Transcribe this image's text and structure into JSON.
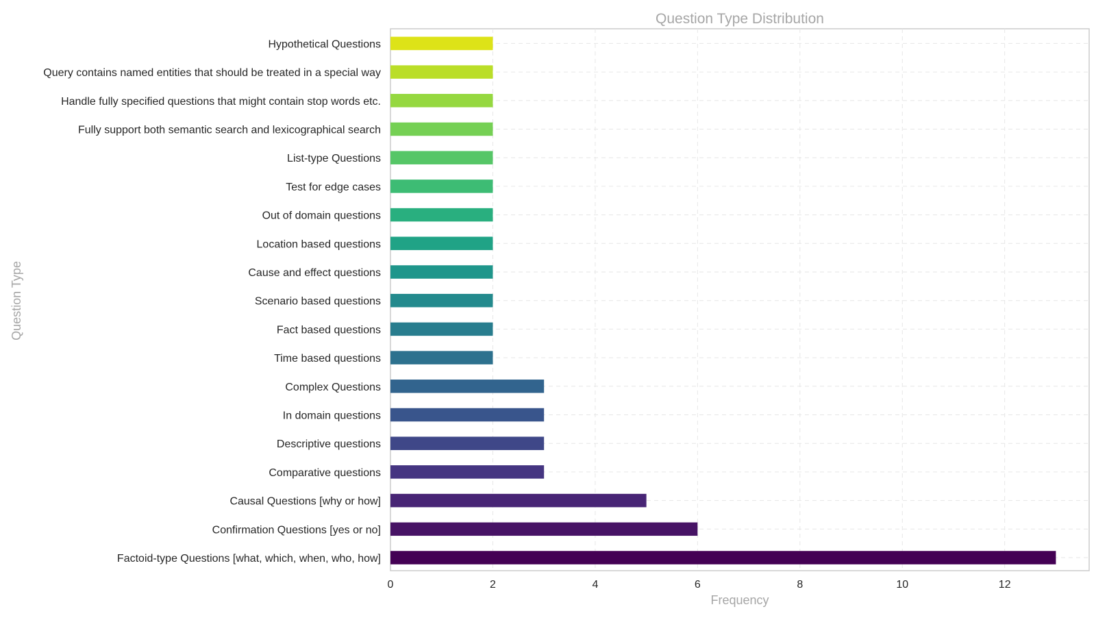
{
  "chart_data": {
    "type": "bar",
    "orientation": "horizontal",
    "title": "Question Type Distribution",
    "xlabel": "Frequency",
    "ylabel": "Question Type",
    "xlim": [
      0,
      13.65
    ],
    "xticks": [
      0,
      2,
      4,
      6,
      8,
      10,
      12
    ],
    "grid": true,
    "legend": "none",
    "categories": [
      "Factoid-type Questions [what, which, when, who, how]",
      "Confirmation Questions [yes or no]",
      "Causal Questions [why or how]",
      "Comparative questions",
      "Descriptive questions",
      "In domain questions",
      "Complex Questions",
      "Time based questions",
      "Fact based questions",
      "Scenario based questions",
      "Cause and effect questions",
      "Location based questions",
      "Out of domain questions",
      "Test for edge cases",
      "List-type Questions",
      "Fully support both semantic search and lexicographical search",
      "Handle fully specified questions that might contain stop words etc.",
      "Query contains named entities that should be treated in a special way",
      "Hypothetical Questions"
    ],
    "values": [
      13,
      6,
      5,
      3,
      3,
      3,
      3,
      2,
      2,
      2,
      2,
      2,
      2,
      2,
      2,
      2,
      2,
      2,
      2
    ],
    "colors": [
      "#440154",
      "#471365",
      "#482575",
      "#453581",
      "#3f4788",
      "#39558c",
      "#32648e",
      "#2d718e",
      "#287d8e",
      "#238a8d",
      "#1f968b",
      "#20a386",
      "#29af7f",
      "#3dbc74",
      "#56c667",
      "#75d054",
      "#95d840",
      "#bade28",
      "#dde318"
    ]
  }
}
